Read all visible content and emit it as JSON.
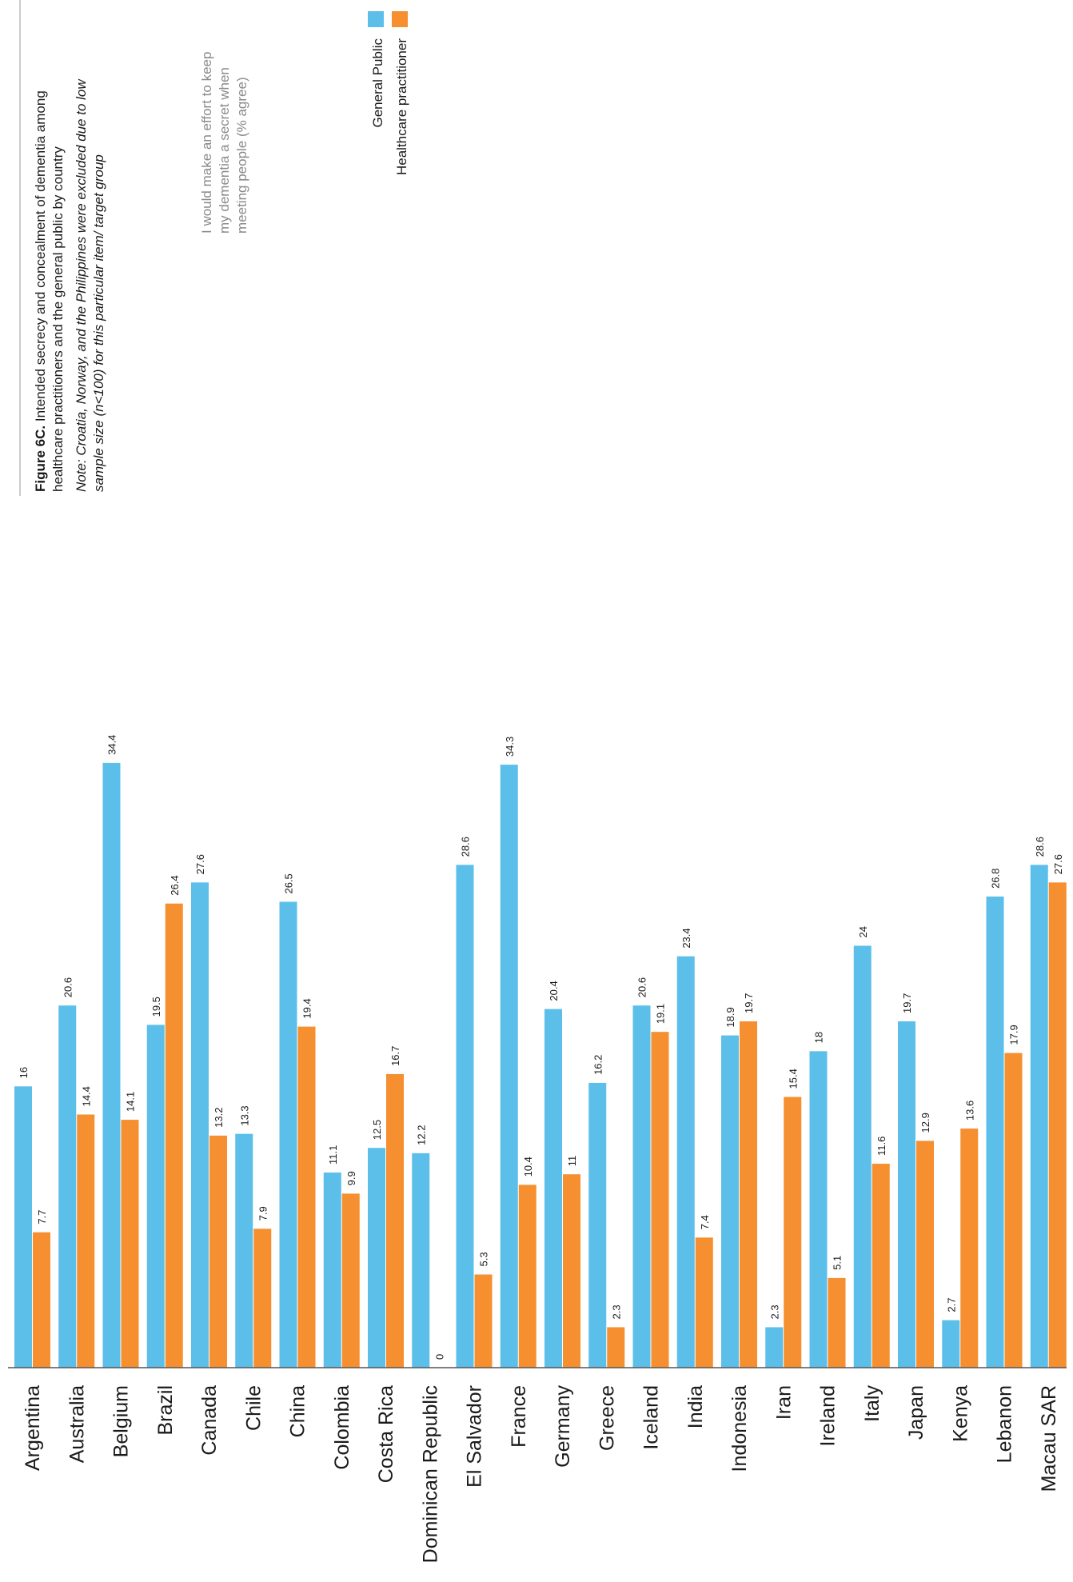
{
  "figure": {
    "title_bold": "Figure 6C.",
    "title_rest": " Intended secrecy and concealment of dementia among",
    "title_line2": "healthcare practitioners and the general public by country",
    "note_line1": "Note: Croatia, Norway, and the Philippines were excluded due to low",
    "note_line2": "sample size (n<100) for this particular item/ target group",
    "subtitle_line1": "I would make an effort to keep",
    "subtitle_line2": "my dementia a secret when",
    "subtitle_line3": "meeting people (% agree)"
  },
  "colors": {
    "general_public": "#5bbfea",
    "healthcare": "#f58f2f",
    "axis": "#555555"
  },
  "chart_data": {
    "type": "bar",
    "orientation": "rotated",
    "categories": [
      "Argentina",
      "Australia",
      "Belgium",
      "Brazil",
      "Canada",
      "Chile",
      "China",
      "Colombia",
      "Costa Rica",
      "Dominican Republic",
      "El Salvador",
      "France",
      "Germany",
      "Greece",
      "Iceland",
      "India",
      "Indonesia",
      "Iran",
      "Ireland",
      "Italy",
      "Japan",
      "Kenya",
      "Lebanon",
      "Macau SAR"
    ],
    "series": [
      {
        "name": "General Public",
        "values": [
          16,
          20.6,
          34.4,
          19.5,
          27.6,
          13.3,
          26.5,
          11.1,
          12.5,
          12.2,
          28.6,
          34.3,
          20.4,
          16.2,
          20.6,
          23.4,
          18.9,
          2.3,
          18,
          24,
          19.7,
          2.7,
          26.8,
          28.6
        ],
        "labels": [
          "16",
          "20.6",
          "34.4",
          "19.5",
          "27.6",
          "13.3",
          "26.5",
          "11.1",
          "12.5",
          "12.2",
          "28.6",
          "34.3",
          "20.4",
          "16.2",
          "20.6",
          "23.4",
          "18.9",
          "2.3",
          "18",
          "24",
          "19.7",
          "2.7",
          "26.8",
          "28.6"
        ]
      },
      {
        "name": "Healthcare practitioner",
        "values": [
          7.7,
          14.4,
          14.1,
          26.4,
          13.2,
          7.9,
          19.4,
          9.9,
          16.7,
          0,
          5.3,
          10.4,
          11,
          2.3,
          19.1,
          7.4,
          19.7,
          15.4,
          5.1,
          11.6,
          12.9,
          13.6,
          17.9,
          27.6
        ],
        "labels": [
          "7.7",
          "14.4",
          "14.1",
          "26.4",
          "13.2",
          "7.9",
          "19.4",
          "9.9",
          "16.7",
          "0",
          "5.3",
          "10.4",
          "11",
          "2.3",
          "19.1",
          "7.4",
          "19.7",
          "15.4",
          "5.1",
          "11.6",
          "12.9",
          "13.6",
          "17.9",
          "27.6"
        ]
      }
    ],
    "grid": false,
    "legend_position": "top-right"
  }
}
